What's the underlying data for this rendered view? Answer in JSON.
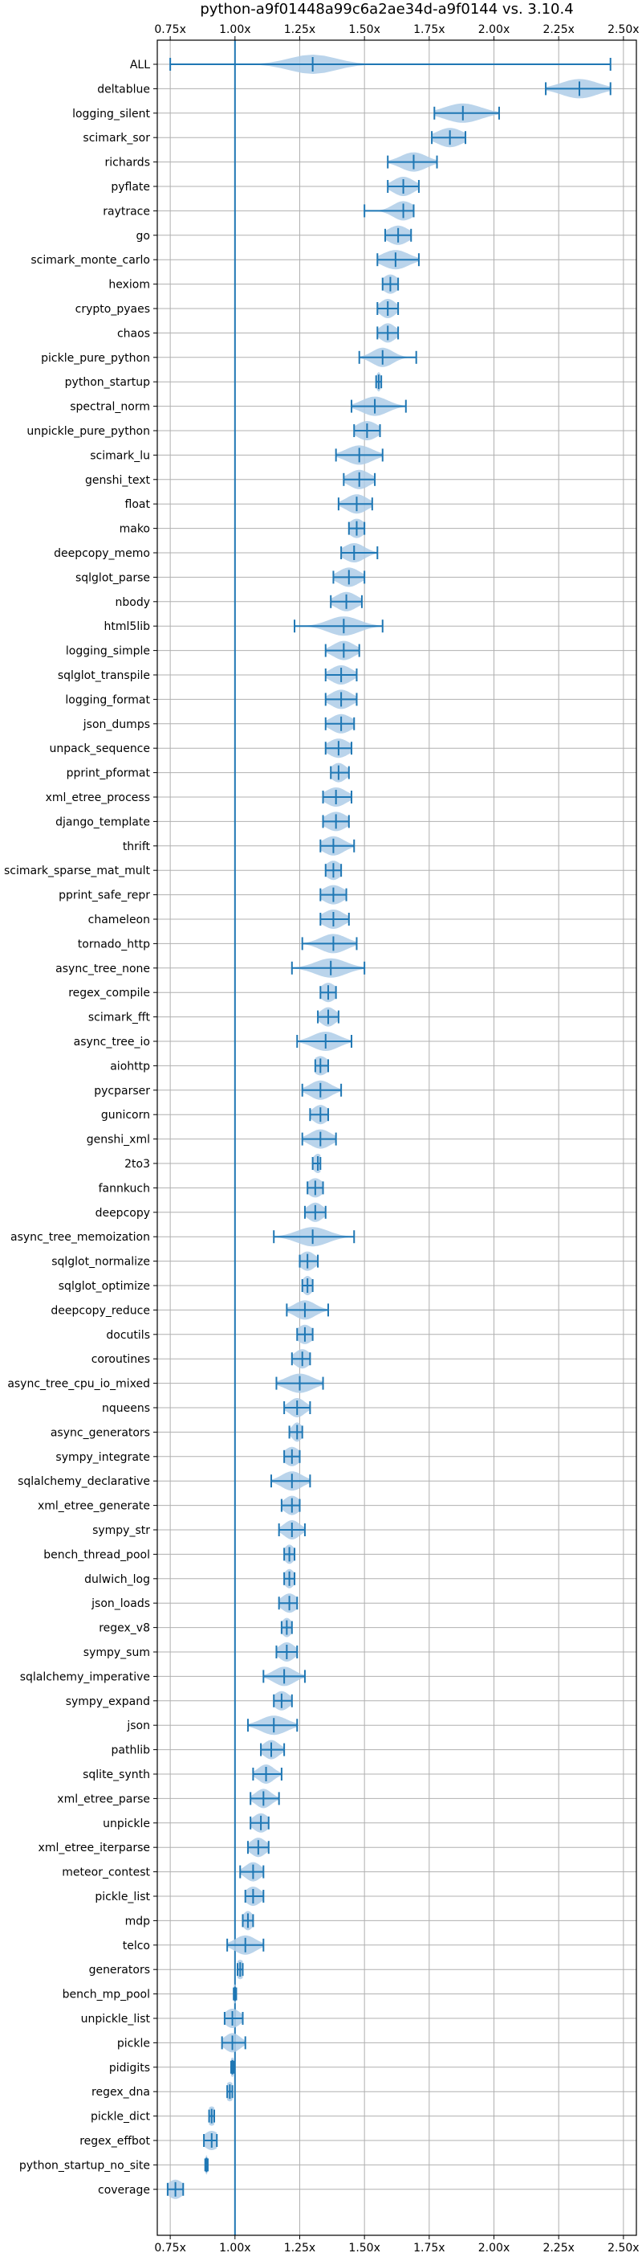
{
  "chart_data": {
    "type": "violin",
    "title": "python-a9f01448a99c6a2ae34d-a9f0144 vs. 3.10.4",
    "xlabel": "",
    "ylabel": "",
    "xlim": [
      0.7,
      2.55
    ],
    "xticks": [
      0.75,
      1.0,
      1.25,
      1.5,
      1.75,
      2.0,
      2.25,
      2.5
    ],
    "xtick_labels": [
      "0.75x",
      "1.00x",
      "1.25x",
      "1.50x",
      "1.75x",
      "2.00x",
      "2.25x",
      "2.50x"
    ],
    "xticks_top": true,
    "grid": true,
    "reference_line": 1.0,
    "colors": {
      "violin": "#aecde8",
      "line": "#1f77b4",
      "grid": "#b0b0b0",
      "axis": "#000000"
    },
    "series": [
      {
        "name": "ALL",
        "median": 1.3,
        "min": 0.75,
        "max": 2.45,
        "spread": 0.09
      },
      {
        "name": "deltablue",
        "median": 2.33,
        "min": 2.2,
        "max": 2.45,
        "spread": 0.07
      },
      {
        "name": "logging_silent",
        "median": 1.88,
        "min": 1.77,
        "max": 2.02,
        "spread": 0.07
      },
      {
        "name": "scimark_sor",
        "median": 1.83,
        "min": 1.76,
        "max": 1.89,
        "spread": 0.05
      },
      {
        "name": "richards",
        "median": 1.69,
        "min": 1.59,
        "max": 1.78,
        "spread": 0.05
      },
      {
        "name": "pyflate",
        "median": 1.65,
        "min": 1.59,
        "max": 1.71,
        "spread": 0.04
      },
      {
        "name": "raytrace",
        "median": 1.65,
        "min": 1.5,
        "max": 1.69,
        "spread": 0.04
      },
      {
        "name": "go",
        "median": 1.63,
        "min": 1.58,
        "max": 1.68,
        "spread": 0.04
      },
      {
        "name": "scimark_monte_carlo",
        "median": 1.62,
        "min": 1.55,
        "max": 1.71,
        "spread": 0.05
      },
      {
        "name": "hexiom",
        "median": 1.6,
        "min": 1.57,
        "max": 1.63,
        "spread": 0.03
      },
      {
        "name": "crypto_pyaes",
        "median": 1.59,
        "min": 1.55,
        "max": 1.63,
        "spread": 0.03
      },
      {
        "name": "chaos",
        "median": 1.59,
        "min": 1.55,
        "max": 1.63,
        "spread": 0.03
      },
      {
        "name": "pickle_pure_python",
        "median": 1.57,
        "min": 1.48,
        "max": 1.7,
        "spread": 0.04
      },
      {
        "name": "python_startup",
        "median": 1.555,
        "min": 1.545,
        "max": 1.565,
        "spread": 0.01
      },
      {
        "name": "spectral_norm",
        "median": 1.54,
        "min": 1.45,
        "max": 1.66,
        "spread": 0.05
      },
      {
        "name": "unpickle_pure_python",
        "median": 1.51,
        "min": 1.46,
        "max": 1.56,
        "spread": 0.04
      },
      {
        "name": "scimark_lu",
        "median": 1.48,
        "min": 1.39,
        "max": 1.57,
        "spread": 0.05
      },
      {
        "name": "genshi_text",
        "median": 1.48,
        "min": 1.42,
        "max": 1.54,
        "spread": 0.04
      },
      {
        "name": "float",
        "median": 1.47,
        "min": 1.4,
        "max": 1.53,
        "spread": 0.04
      },
      {
        "name": "mako",
        "median": 1.47,
        "min": 1.44,
        "max": 1.5,
        "spread": 0.03
      },
      {
        "name": "deepcopy_memo",
        "median": 1.46,
        "min": 1.41,
        "max": 1.55,
        "spread": 0.04
      },
      {
        "name": "sqlglot_parse",
        "median": 1.44,
        "min": 1.38,
        "max": 1.5,
        "spread": 0.04
      },
      {
        "name": "nbody",
        "median": 1.43,
        "min": 1.37,
        "max": 1.49,
        "spread": 0.04
      },
      {
        "name": "html5lib",
        "median": 1.42,
        "min": 1.23,
        "max": 1.57,
        "spread": 0.06
      },
      {
        "name": "logging_simple",
        "median": 1.42,
        "min": 1.35,
        "max": 1.48,
        "spread": 0.04
      },
      {
        "name": "sqlglot_transpile",
        "median": 1.41,
        "min": 1.35,
        "max": 1.47,
        "spread": 0.04
      },
      {
        "name": "logging_format",
        "median": 1.41,
        "min": 1.35,
        "max": 1.47,
        "spread": 0.04
      },
      {
        "name": "json_dumps",
        "median": 1.41,
        "min": 1.35,
        "max": 1.46,
        "spread": 0.04
      },
      {
        "name": "unpack_sequence",
        "median": 1.4,
        "min": 1.35,
        "max": 1.45,
        "spread": 0.04
      },
      {
        "name": "pprint_pformat",
        "median": 1.4,
        "min": 1.37,
        "max": 1.44,
        "spread": 0.03
      },
      {
        "name": "xml_etree_process",
        "median": 1.39,
        "min": 1.34,
        "max": 1.45,
        "spread": 0.04
      },
      {
        "name": "django_template",
        "median": 1.39,
        "min": 1.34,
        "max": 1.44,
        "spread": 0.04
      },
      {
        "name": "thrift",
        "median": 1.38,
        "min": 1.33,
        "max": 1.46,
        "spread": 0.04
      },
      {
        "name": "scimark_sparse_mat_mult",
        "median": 1.38,
        "min": 1.35,
        "max": 1.41,
        "spread": 0.03
      },
      {
        "name": "pprint_safe_repr",
        "median": 1.38,
        "min": 1.33,
        "max": 1.43,
        "spread": 0.04
      },
      {
        "name": "chameleon",
        "median": 1.38,
        "min": 1.33,
        "max": 1.44,
        "spread": 0.04
      },
      {
        "name": "tornado_http",
        "median": 1.38,
        "min": 1.26,
        "max": 1.47,
        "spread": 0.05
      },
      {
        "name": "async_tree_none",
        "median": 1.37,
        "min": 1.22,
        "max": 1.5,
        "spread": 0.06
      },
      {
        "name": "regex_compile",
        "median": 1.36,
        "min": 1.33,
        "max": 1.39,
        "spread": 0.03
      },
      {
        "name": "scimark_fft",
        "median": 1.36,
        "min": 1.32,
        "max": 1.4,
        "spread": 0.03
      },
      {
        "name": "async_tree_io",
        "median": 1.35,
        "min": 1.24,
        "max": 1.45,
        "spread": 0.05
      },
      {
        "name": "aiohttp",
        "median": 1.33,
        "min": 1.31,
        "max": 1.36,
        "spread": 0.03
      },
      {
        "name": "pycparser",
        "median": 1.33,
        "min": 1.26,
        "max": 1.41,
        "spread": 0.04
      },
      {
        "name": "gunicorn",
        "median": 1.33,
        "min": 1.29,
        "max": 1.36,
        "spread": 0.03
      },
      {
        "name": "genshi_xml",
        "median": 1.33,
        "min": 1.26,
        "max": 1.39,
        "spread": 0.04
      },
      {
        "name": "2to3",
        "median": 1.32,
        "min": 1.3,
        "max": 1.33,
        "spread": 0.02
      },
      {
        "name": "fannkuch",
        "median": 1.31,
        "min": 1.28,
        "max": 1.34,
        "spread": 0.03
      },
      {
        "name": "deepcopy",
        "median": 1.31,
        "min": 1.27,
        "max": 1.35,
        "spread": 0.03
      },
      {
        "name": "async_tree_memoization",
        "median": 1.3,
        "min": 1.15,
        "max": 1.46,
        "spread": 0.06
      },
      {
        "name": "sqlglot_normalize",
        "median": 1.28,
        "min": 1.25,
        "max": 1.32,
        "spread": 0.03
      },
      {
        "name": "sqlglot_optimize",
        "median": 1.28,
        "min": 1.26,
        "max": 1.3,
        "spread": 0.02
      },
      {
        "name": "deepcopy_reduce",
        "median": 1.27,
        "min": 1.2,
        "max": 1.36,
        "spread": 0.04
      },
      {
        "name": "docutils",
        "median": 1.27,
        "min": 1.24,
        "max": 1.3,
        "spread": 0.03
      },
      {
        "name": "coroutines",
        "median": 1.26,
        "min": 1.22,
        "max": 1.29,
        "spread": 0.03
      },
      {
        "name": "async_tree_cpu_io_mixed",
        "median": 1.25,
        "min": 1.16,
        "max": 1.34,
        "spread": 0.05
      },
      {
        "name": "nqueens",
        "median": 1.24,
        "min": 1.19,
        "max": 1.29,
        "spread": 0.03
      },
      {
        "name": "async_generators",
        "median": 1.24,
        "min": 1.21,
        "max": 1.26,
        "spread": 0.02
      },
      {
        "name": "sympy_integrate",
        "median": 1.22,
        "min": 1.19,
        "max": 1.25,
        "spread": 0.03
      },
      {
        "name": "sqlalchemy_declarative",
        "median": 1.22,
        "min": 1.14,
        "max": 1.29,
        "spread": 0.04
      },
      {
        "name": "xml_etree_generate",
        "median": 1.22,
        "min": 1.18,
        "max": 1.25,
        "spread": 0.03
      },
      {
        "name": "sympy_str",
        "median": 1.22,
        "min": 1.17,
        "max": 1.27,
        "spread": 0.03
      },
      {
        "name": "bench_thread_pool",
        "median": 1.21,
        "min": 1.19,
        "max": 1.23,
        "spread": 0.02
      },
      {
        "name": "dulwich_log",
        "median": 1.21,
        "min": 1.19,
        "max": 1.23,
        "spread": 0.02
      },
      {
        "name": "json_loads",
        "median": 1.21,
        "min": 1.17,
        "max": 1.24,
        "spread": 0.03
      },
      {
        "name": "regex_v8",
        "median": 1.2,
        "min": 1.18,
        "max": 1.22,
        "spread": 0.02
      },
      {
        "name": "sympy_sum",
        "median": 1.2,
        "min": 1.16,
        "max": 1.24,
        "spread": 0.03
      },
      {
        "name": "sqlalchemy_imperative",
        "median": 1.19,
        "min": 1.11,
        "max": 1.27,
        "spread": 0.04
      },
      {
        "name": "sympy_expand",
        "median": 1.18,
        "min": 1.15,
        "max": 1.22,
        "spread": 0.03
      },
      {
        "name": "json",
        "median": 1.15,
        "min": 1.05,
        "max": 1.24,
        "spread": 0.05
      },
      {
        "name": "pathlib",
        "median": 1.14,
        "min": 1.1,
        "max": 1.19,
        "spread": 0.03
      },
      {
        "name": "sqlite_synth",
        "median": 1.12,
        "min": 1.07,
        "max": 1.18,
        "spread": 0.03
      },
      {
        "name": "xml_etree_parse",
        "median": 1.11,
        "min": 1.06,
        "max": 1.17,
        "spread": 0.03
      },
      {
        "name": "unpickle",
        "median": 1.1,
        "min": 1.06,
        "max": 1.13,
        "spread": 0.03
      },
      {
        "name": "xml_etree_iterparse",
        "median": 1.09,
        "min": 1.05,
        "max": 1.13,
        "spread": 0.03
      },
      {
        "name": "meteor_contest",
        "median": 1.07,
        "min": 1.02,
        "max": 1.11,
        "spread": 0.03
      },
      {
        "name": "pickle_list",
        "median": 1.07,
        "min": 1.04,
        "max": 1.11,
        "spread": 0.03
      },
      {
        "name": "mdp",
        "median": 1.05,
        "min": 1.03,
        "max": 1.07,
        "spread": 0.02
      },
      {
        "name": "telco",
        "median": 1.04,
        "min": 0.97,
        "max": 1.11,
        "spread": 0.04
      },
      {
        "name": "generators",
        "median": 1.02,
        "min": 1.01,
        "max": 1.03,
        "spread": 0.02
      },
      {
        "name": "bench_mp_pool",
        "median": 1.0,
        "min": 0.995,
        "max": 1.005,
        "spread": 0.005
      },
      {
        "name": "unpickle_list",
        "median": 0.99,
        "min": 0.96,
        "max": 1.03,
        "spread": 0.03
      },
      {
        "name": "pickle",
        "median": 0.99,
        "min": 0.95,
        "max": 1.04,
        "spread": 0.03
      },
      {
        "name": "pidigits",
        "median": 0.99,
        "min": 0.985,
        "max": 0.995,
        "spread": 0.01
      },
      {
        "name": "regex_dna",
        "median": 0.98,
        "min": 0.97,
        "max": 0.99,
        "spread": 0.02
      },
      {
        "name": "pickle_dict",
        "median": 0.91,
        "min": 0.9,
        "max": 0.92,
        "spread": 0.02
      },
      {
        "name": "regex_effbot",
        "median": 0.91,
        "min": 0.88,
        "max": 0.93,
        "spread": 0.03
      },
      {
        "name": "python_startup_no_site",
        "median": 0.89,
        "min": 0.885,
        "max": 0.895,
        "spread": 0.005
      },
      {
        "name": "coverage",
        "median": 0.77,
        "min": 0.74,
        "max": 0.8,
        "spread": 0.03
      }
    ]
  }
}
